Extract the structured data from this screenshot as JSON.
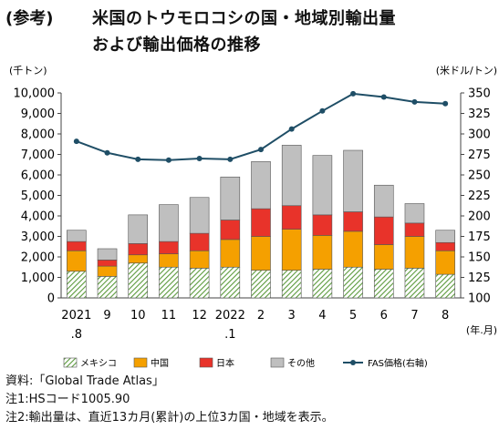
{
  "header": {
    "ref": "(参考)",
    "title_line1": "米国のトウモロコシの国・地域別輸出量",
    "title_line2": "および輸出価格の推移"
  },
  "chart_data": {
    "type": "bar",
    "stacked": true,
    "categories": [
      "2021",
      "9",
      "10",
      "11",
      "12",
      "2022",
      "2",
      "3",
      "4",
      "5",
      "6",
      "7",
      "8"
    ],
    "category_sublabels": [
      ".8",
      "",
      "",
      "",
      "",
      ".1",
      "",
      "",
      "",
      "",
      "",
      "",
      ""
    ],
    "xunit": "(年.月)",
    "y_left": {
      "unit": "(千トン)",
      "lim": [
        0,
        10000
      ],
      "ticks": [
        "0",
        "1,000",
        "2,000",
        "3,000",
        "4,000",
        "5,000",
        "6,000",
        "7,000",
        "8,000",
        "9,000",
        "10,000"
      ]
    },
    "y_right": {
      "unit": "(米ドル/トン)",
      "lim": [
        100,
        350
      ],
      "ticks": [
        "100",
        "125",
        "150",
        "175",
        "200",
        "225",
        "250",
        "275",
        "300",
        "325",
        "350"
      ]
    },
    "series": [
      {
        "name": "メキシコ",
        "color": "#6aa84f",
        "pattern": "hatch",
        "values": [
          1300,
          1050,
          1700,
          1500,
          1450,
          1500,
          1350,
          1350,
          1400,
          1500,
          1400,
          1450,
          1150
        ]
      },
      {
        "name": "中国",
        "color": "#f5a000",
        "values": [
          1000,
          500,
          400,
          650,
          850,
          1350,
          1650,
          2000,
          1650,
          1750,
          1200,
          1550,
          1150
        ]
      },
      {
        "name": "日本",
        "color": "#e8332a",
        "values": [
          450,
          300,
          550,
          600,
          850,
          950,
          1350,
          1150,
          1000,
          950,
          1350,
          650,
          400
        ]
      },
      {
        "name": "その他",
        "color": "#bfbfbf",
        "values": [
          550,
          550,
          1400,
          1800,
          1750,
          2100,
          2300,
          2950,
          2900,
          3000,
          1550,
          950,
          600
        ]
      },
      {
        "name": "FAS価格(右軸)",
        "type": "line",
        "axis": "right",
        "color": "#1f4e66",
        "values": [
          291,
          277,
          269,
          268,
          270,
          269,
          281,
          306,
          328,
          349,
          345,
          339,
          337
        ]
      }
    ],
    "legend_position": "bottom",
    "grid": false
  },
  "notes": [
    "資料:「Global Trade Atlas」",
    "注1:HSコード1005.90",
    "注2:輸出量は、直近13カ月(累計)の上位3カ国・地域を表示。"
  ]
}
